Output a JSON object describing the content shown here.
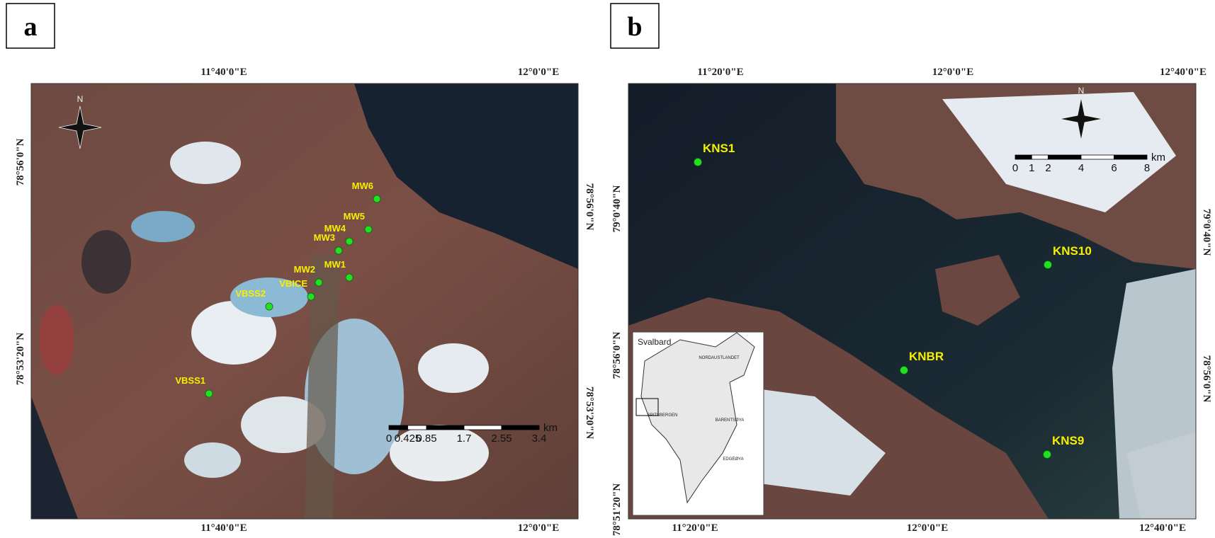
{
  "panels": [
    {
      "letter": "a",
      "top_labels": [
        "11°40'0\"E",
        "12°0'0\"E"
      ],
      "bottom_labels": [
        "11°40'0\"E",
        "12°0'0\"E"
      ],
      "left_labels": [
        "78°56'0\"N",
        "78°53'20\"N"
      ],
      "right_labels": [
        "78°56'0\"N",
        "78°53'20\"N"
      ],
      "compass": "N",
      "points": [
        "MW6",
        "MW5",
        "MW4",
        "MW3",
        "MW2",
        "MW1",
        "VBICE",
        "VBSS2",
        "VBSS1"
      ],
      "scale_bar": {
        "unit": "km",
        "ticks": [
          "0",
          "0.425",
          "0.85",
          "1.7",
          "2.55",
          "3.4"
        ]
      }
    },
    {
      "letter": "b",
      "top_labels": [
        "11°20'0\"E",
        "12°0'0\"E",
        "12°40'0\"E"
      ],
      "bottom_labels": [
        "11°20'0\"E",
        "12°0'0\"E",
        "12°40'0\"E"
      ],
      "left_labels": [
        "79°0'40\"N",
        "78°56'0\"N",
        "78°51'20\"N"
      ],
      "right_labels": [
        "79°0'40\"N",
        "78°56'0\"N"
      ],
      "compass": "N",
      "points": [
        "KNS1",
        "KNS10",
        "KNBR",
        "KNS9"
      ],
      "scale_bar": {
        "unit": "km",
        "ticks": [
          "0",
          "1",
          "2",
          "4",
          "6",
          "8"
        ]
      },
      "inset": {
        "title": "Svalbard",
        "labels": [
          "NORDAUSTLANDET",
          "SPITSBERGEN",
          "BARENTSØYA",
          "EDGEØYA"
        ]
      }
    }
  ]
}
